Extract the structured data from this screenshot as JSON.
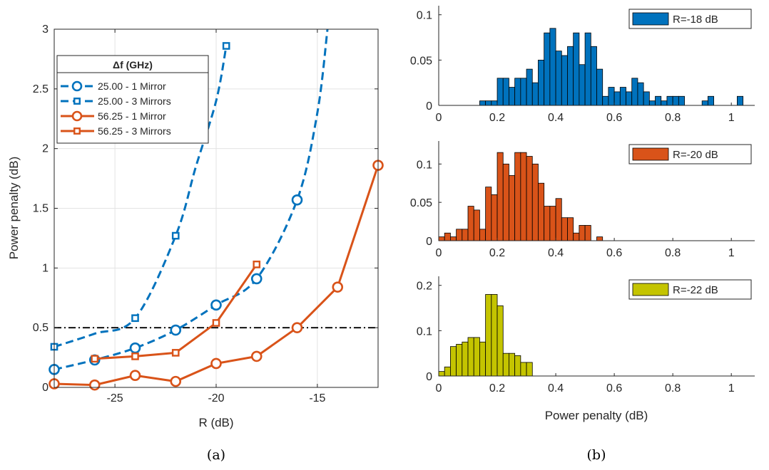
{
  "chart_data": [
    {
      "type": "line",
      "caption": "(a)",
      "xlabel": "R (dB)",
      "ylabel": "Power penalty (dB)",
      "xlim": [
        -28,
        -12
      ],
      "ylim": [
        0,
        3
      ],
      "xticks": [
        -25,
        -20,
        -15
      ],
      "yticks": [
        0,
        0.5,
        1,
        1.5,
        2,
        2.5,
        3
      ],
      "tick_labels_x": [
        "-25",
        "-20",
        "-15"
      ],
      "tick_labels_y": [
        "0",
        "0.5",
        "1",
        "1.5",
        "2",
        "2.5",
        "3"
      ],
      "grid": true,
      "legend_title": "Δf (GHz)",
      "legend_position": "top-left",
      "reference_line": {
        "y": 0.5,
        "style": "dash-dot",
        "color": "#000000"
      },
      "series": [
        {
          "name": "25.00 - 1 Mirror",
          "color": "#0072BD",
          "line": "dashed",
          "marker": "circle",
          "marker_x": [
            -28,
            -26,
            -24,
            -22,
            -20,
            -18,
            -16
          ],
          "marker_y": [
            0.15,
            0.23,
            0.33,
            0.48,
            0.69,
            0.91,
            1.57
          ],
          "curve_x": [
            -28,
            -26,
            -24,
            -22,
            -20,
            -18,
            -16,
            -15,
            -14.5
          ],
          "curve_y": [
            0.15,
            0.23,
            0.33,
            0.48,
            0.69,
            0.91,
            1.57,
            2.3,
            3.0
          ]
        },
        {
          "name": "25.00 - 3 Mirrors",
          "color": "#0072BD",
          "line": "dashed",
          "marker": "square",
          "marker_x": [
            -28,
            -24,
            -22,
            -19.5
          ],
          "marker_y": [
            0.34,
            0.58,
            1.27,
            2.86
          ],
          "curve_x": [
            -28,
            -26,
            -24,
            -22,
            -21,
            -20,
            -19.5
          ],
          "curve_y": [
            0.34,
            0.45,
            0.58,
            1.27,
            1.85,
            2.4,
            2.86
          ]
        },
        {
          "name": "56.25 - 1 Mirror",
          "color": "#D95319",
          "line": "solid",
          "marker": "circle",
          "marker_x": [
            -28,
            -26,
            -24,
            -22,
            -20,
            -18,
            -16,
            -14,
            -12
          ],
          "marker_y": [
            0.03,
            0.02,
            0.1,
            0.05,
            0.2,
            0.26,
            0.5,
            0.84,
            1.86
          ],
          "curve_x": [
            -28,
            -26,
            -24,
            -22,
            -20,
            -18,
            -16,
            -14,
            -12
          ],
          "curve_y": [
            0.03,
            0.02,
            0.1,
            0.05,
            0.2,
            0.26,
            0.5,
            0.84,
            1.86
          ]
        },
        {
          "name": "56.25 - 3 Mirrors",
          "color": "#D95319",
          "line": "solid",
          "marker": "square",
          "marker_x": [
            -26,
            -24,
            -22,
            -20,
            -18
          ],
          "marker_y": [
            0.24,
            0.26,
            0.29,
            0.54,
            1.03
          ],
          "curve_x": [
            -26,
            -24,
            -22,
            -20,
            -18
          ],
          "curve_y": [
            0.24,
            0.26,
            0.29,
            0.54,
            1.03
          ]
        }
      ]
    },
    {
      "type": "bar",
      "caption": "(b)",
      "xlabel": "Power penalty (dB)",
      "xlim": [
        0,
        1.08
      ],
      "xticks": [
        0,
        0.2,
        0.4,
        0.6,
        0.8,
        1
      ],
      "tick_labels_x": [
        "0",
        "0.2",
        "0.4",
        "0.6",
        "0.8",
        "1"
      ],
      "bin_width": 0.02,
      "legend_position": "top-right",
      "panels": [
        {
          "name": "R=-18 dB",
          "color": "#0072BD",
          "ylim": [
            0,
            0.11
          ],
          "yticks": [
            0,
            0.05,
            0.1
          ],
          "tick_labels_y": [
            "0",
            "0.05",
            "0.1"
          ],
          "bins": [
            [
              0.14,
              0.005
            ],
            [
              0.16,
              0.005
            ],
            [
              0.18,
              0.005
            ],
            [
              0.2,
              0.03
            ],
            [
              0.22,
              0.03
            ],
            [
              0.24,
              0.02
            ],
            [
              0.26,
              0.03
            ],
            [
              0.28,
              0.03
            ],
            [
              0.3,
              0.04
            ],
            [
              0.32,
              0.025
            ],
            [
              0.34,
              0.05
            ],
            [
              0.36,
              0.08
            ],
            [
              0.38,
              0.085
            ],
            [
              0.4,
              0.06
            ],
            [
              0.42,
              0.055
            ],
            [
              0.44,
              0.065
            ],
            [
              0.46,
              0.08
            ],
            [
              0.48,
              0.045
            ],
            [
              0.5,
              0.08
            ],
            [
              0.52,
              0.065
            ],
            [
              0.54,
              0.04
            ],
            [
              0.56,
              0.01
            ],
            [
              0.58,
              0.02
            ],
            [
              0.6,
              0.015
            ],
            [
              0.62,
              0.02
            ],
            [
              0.64,
              0.015
            ],
            [
              0.66,
              0.03
            ],
            [
              0.68,
              0.025
            ],
            [
              0.7,
              0.015
            ],
            [
              0.72,
              0.005
            ],
            [
              0.74,
              0.01
            ],
            [
              0.76,
              0.005
            ],
            [
              0.78,
              0.01
            ],
            [
              0.8,
              0.01
            ],
            [
              0.82,
              0.01
            ],
            [
              0.9,
              0.005
            ],
            [
              0.92,
              0.01
            ],
            [
              1.02,
              0.01
            ]
          ]
        },
        {
          "name": "R=-20 dB",
          "color": "#D95319",
          "ylim": [
            0,
            0.13
          ],
          "yticks": [
            0,
            0.05,
            0.1
          ],
          "tick_labels_y": [
            "0",
            "0.05",
            "0.1"
          ],
          "bins": [
            [
              0.0,
              0.005
            ],
            [
              0.02,
              0.01
            ],
            [
              0.04,
              0.005
            ],
            [
              0.06,
              0.015
            ],
            [
              0.08,
              0.015
            ],
            [
              0.1,
              0.045
            ],
            [
              0.12,
              0.04
            ],
            [
              0.14,
              0.015
            ],
            [
              0.16,
              0.07
            ],
            [
              0.18,
              0.06
            ],
            [
              0.2,
              0.115
            ],
            [
              0.22,
              0.1
            ],
            [
              0.24,
              0.085
            ],
            [
              0.26,
              0.115
            ],
            [
              0.28,
              0.115
            ],
            [
              0.3,
              0.11
            ],
            [
              0.32,
              0.1
            ],
            [
              0.34,
              0.075
            ],
            [
              0.36,
              0.045
            ],
            [
              0.38,
              0.045
            ],
            [
              0.4,
              0.055
            ],
            [
              0.42,
              0.03
            ],
            [
              0.44,
              0.03
            ],
            [
              0.46,
              0.01
            ],
            [
              0.48,
              0.02
            ],
            [
              0.5,
              0.02
            ],
            [
              0.54,
              0.005
            ]
          ]
        },
        {
          "name": "R=-22 dB",
          "color": "#C4C400",
          "ylim": [
            0,
            0.22
          ],
          "yticks": [
            0,
            0.1,
            0.2
          ],
          "tick_labels_y": [
            "0",
            "0.1",
            "0.2"
          ],
          "bins": [
            [
              0.0,
              0.01
            ],
            [
              0.02,
              0.02
            ],
            [
              0.04,
              0.065
            ],
            [
              0.06,
              0.07
            ],
            [
              0.08,
              0.075
            ],
            [
              0.1,
              0.085
            ],
            [
              0.12,
              0.085
            ],
            [
              0.14,
              0.075
            ],
            [
              0.16,
              0.18
            ],
            [
              0.18,
              0.18
            ],
            [
              0.2,
              0.155
            ],
            [
              0.22,
              0.05
            ],
            [
              0.24,
              0.05
            ],
            [
              0.26,
              0.045
            ],
            [
              0.28,
              0.03
            ],
            [
              0.3,
              0.03
            ]
          ]
        }
      ]
    }
  ]
}
